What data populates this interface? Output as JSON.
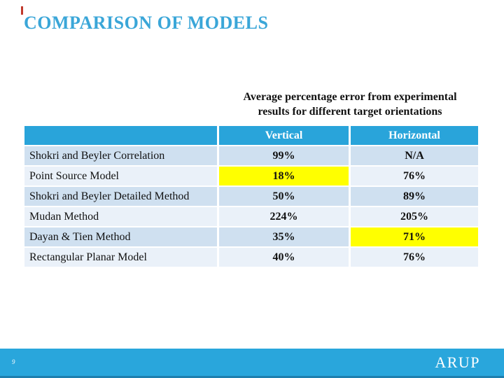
{
  "slide": {
    "title": "COMPARISON OF MODELS",
    "page_number": "9",
    "logo_text": "ARUP"
  },
  "colors": {
    "title_blue": "#3aa6d8",
    "header_blue": "#29a4da",
    "footer_blue": "#29a6dc",
    "row_band_dark": "#cfe0f0",
    "row_band_light": "#eaf1f9",
    "highlight_yellow": "#ffff00",
    "accent_red": "#c0392b"
  },
  "table": {
    "caption_lines": [
      "Average percentage error from experimental",
      "results for different target orientations"
    ],
    "columns": [
      "",
      "Vertical",
      "Horizontal"
    ],
    "rows": [
      {
        "label": "Shokri and Beyler Correlation",
        "vertical": "99%",
        "horizontal": "N/A",
        "highlight": null
      },
      {
        "label": "Point Source Model",
        "vertical": "18%",
        "horizontal": "76%",
        "highlight": "vertical"
      },
      {
        "label": "Shokri and Beyler Detailed Method",
        "vertical": "50%",
        "horizontal": "89%",
        "highlight": null
      },
      {
        "label": "Mudan Method",
        "vertical": "224%",
        "horizontal": "205%",
        "highlight": null
      },
      {
        "label": "Dayan & Tien Method",
        "vertical": "35%",
        "horizontal": "71%",
        "highlight": "horizontal"
      },
      {
        "label": "Rectangular Planar Model",
        "vertical": "40%",
        "horizontal": "76%",
        "highlight": null
      }
    ]
  }
}
